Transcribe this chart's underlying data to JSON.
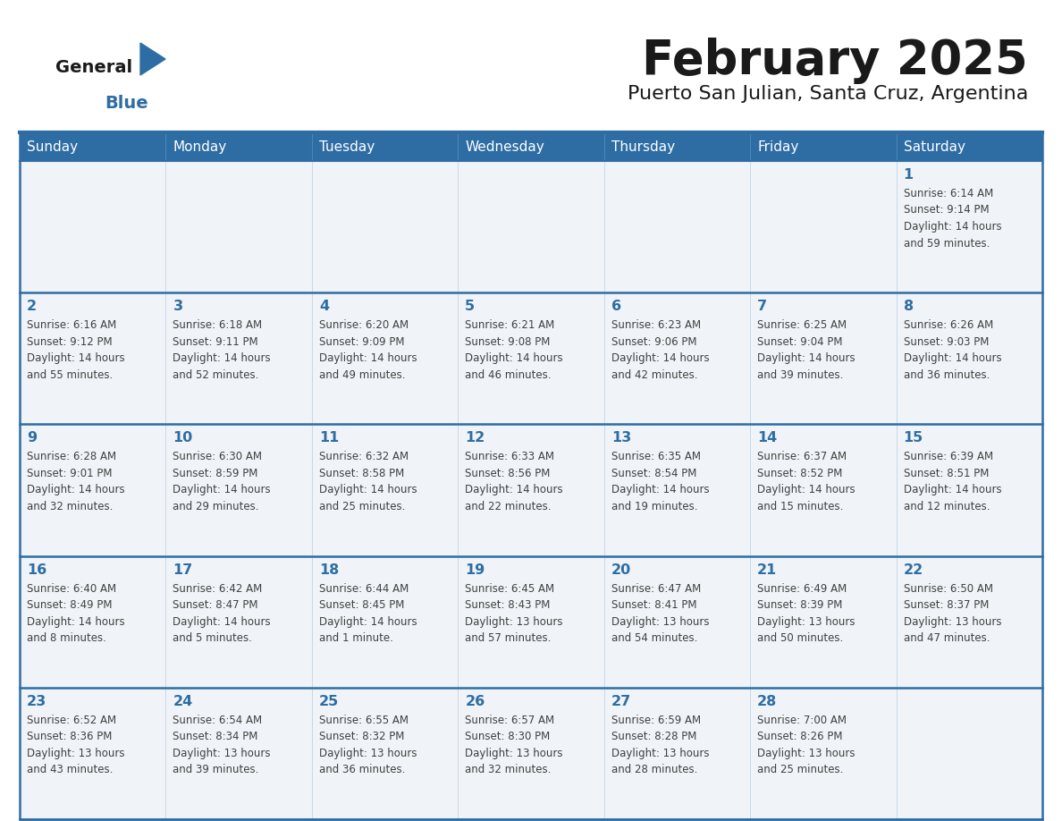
{
  "title": "February 2025",
  "subtitle": "Puerto San Julian, Santa Cruz, Argentina",
  "header_bg": "#2E6DA4",
  "header_text_color": "#FFFFFF",
  "cell_bg": "#F0F4F8",
  "day_number_color": "#2E6DA4",
  "info_text_color": "#404040",
  "border_color": "#2E6DA4",
  "grid_line_color": "#B0C4D8",
  "days_of_week": [
    "Sunday",
    "Monday",
    "Tuesday",
    "Wednesday",
    "Thursday",
    "Friday",
    "Saturday"
  ],
  "weeks": [
    [
      {
        "day": null,
        "info": null
      },
      {
        "day": null,
        "info": null
      },
      {
        "day": null,
        "info": null
      },
      {
        "day": null,
        "info": null
      },
      {
        "day": null,
        "info": null
      },
      {
        "day": null,
        "info": null
      },
      {
        "day": "1",
        "info": "Sunrise: 6:14 AM\nSunset: 9:14 PM\nDaylight: 14 hours\nand 59 minutes."
      }
    ],
    [
      {
        "day": "2",
        "info": "Sunrise: 6:16 AM\nSunset: 9:12 PM\nDaylight: 14 hours\nand 55 minutes."
      },
      {
        "day": "3",
        "info": "Sunrise: 6:18 AM\nSunset: 9:11 PM\nDaylight: 14 hours\nand 52 minutes."
      },
      {
        "day": "4",
        "info": "Sunrise: 6:20 AM\nSunset: 9:09 PM\nDaylight: 14 hours\nand 49 minutes."
      },
      {
        "day": "5",
        "info": "Sunrise: 6:21 AM\nSunset: 9:08 PM\nDaylight: 14 hours\nand 46 minutes."
      },
      {
        "day": "6",
        "info": "Sunrise: 6:23 AM\nSunset: 9:06 PM\nDaylight: 14 hours\nand 42 minutes."
      },
      {
        "day": "7",
        "info": "Sunrise: 6:25 AM\nSunset: 9:04 PM\nDaylight: 14 hours\nand 39 minutes."
      },
      {
        "day": "8",
        "info": "Sunrise: 6:26 AM\nSunset: 9:03 PM\nDaylight: 14 hours\nand 36 minutes."
      }
    ],
    [
      {
        "day": "9",
        "info": "Sunrise: 6:28 AM\nSunset: 9:01 PM\nDaylight: 14 hours\nand 32 minutes."
      },
      {
        "day": "10",
        "info": "Sunrise: 6:30 AM\nSunset: 8:59 PM\nDaylight: 14 hours\nand 29 minutes."
      },
      {
        "day": "11",
        "info": "Sunrise: 6:32 AM\nSunset: 8:58 PM\nDaylight: 14 hours\nand 25 minutes."
      },
      {
        "day": "12",
        "info": "Sunrise: 6:33 AM\nSunset: 8:56 PM\nDaylight: 14 hours\nand 22 minutes."
      },
      {
        "day": "13",
        "info": "Sunrise: 6:35 AM\nSunset: 8:54 PM\nDaylight: 14 hours\nand 19 minutes."
      },
      {
        "day": "14",
        "info": "Sunrise: 6:37 AM\nSunset: 8:52 PM\nDaylight: 14 hours\nand 15 minutes."
      },
      {
        "day": "15",
        "info": "Sunrise: 6:39 AM\nSunset: 8:51 PM\nDaylight: 14 hours\nand 12 minutes."
      }
    ],
    [
      {
        "day": "16",
        "info": "Sunrise: 6:40 AM\nSunset: 8:49 PM\nDaylight: 14 hours\nand 8 minutes."
      },
      {
        "day": "17",
        "info": "Sunrise: 6:42 AM\nSunset: 8:47 PM\nDaylight: 14 hours\nand 5 minutes."
      },
      {
        "day": "18",
        "info": "Sunrise: 6:44 AM\nSunset: 8:45 PM\nDaylight: 14 hours\nand 1 minute."
      },
      {
        "day": "19",
        "info": "Sunrise: 6:45 AM\nSunset: 8:43 PM\nDaylight: 13 hours\nand 57 minutes."
      },
      {
        "day": "20",
        "info": "Sunrise: 6:47 AM\nSunset: 8:41 PM\nDaylight: 13 hours\nand 54 minutes."
      },
      {
        "day": "21",
        "info": "Sunrise: 6:49 AM\nSunset: 8:39 PM\nDaylight: 13 hours\nand 50 minutes."
      },
      {
        "day": "22",
        "info": "Sunrise: 6:50 AM\nSunset: 8:37 PM\nDaylight: 13 hours\nand 47 minutes."
      }
    ],
    [
      {
        "day": "23",
        "info": "Sunrise: 6:52 AM\nSunset: 8:36 PM\nDaylight: 13 hours\nand 43 minutes."
      },
      {
        "day": "24",
        "info": "Sunrise: 6:54 AM\nSunset: 8:34 PM\nDaylight: 13 hours\nand 39 minutes."
      },
      {
        "day": "25",
        "info": "Sunrise: 6:55 AM\nSunset: 8:32 PM\nDaylight: 13 hours\nand 36 minutes."
      },
      {
        "day": "26",
        "info": "Sunrise: 6:57 AM\nSunset: 8:30 PM\nDaylight: 13 hours\nand 32 minutes."
      },
      {
        "day": "27",
        "info": "Sunrise: 6:59 AM\nSunset: 8:28 PM\nDaylight: 13 hours\nand 28 minutes."
      },
      {
        "day": "28",
        "info": "Sunrise: 7:00 AM\nSunset: 8:26 PM\nDaylight: 13 hours\nand 25 minutes."
      },
      {
        "day": null,
        "info": null
      }
    ]
  ]
}
